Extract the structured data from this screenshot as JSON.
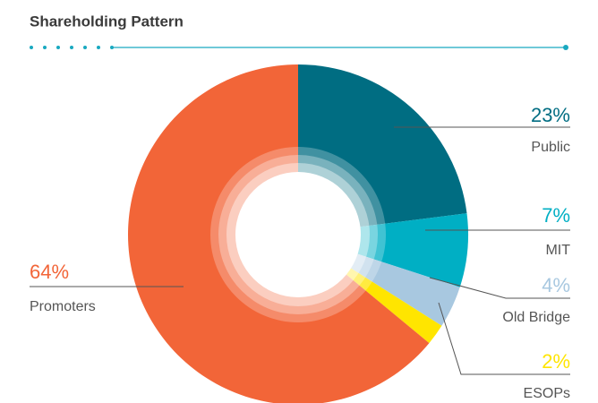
{
  "chart_data": {
    "type": "donut",
    "title": "Shareholding Pattern",
    "categories": [
      "Public",
      "MIT",
      "Old Bridge",
      "ESOPs",
      "Promoters"
    ],
    "values": [
      23,
      7,
      4,
      2,
      64
    ],
    "value_labels": [
      "23%",
      "7%",
      "4%",
      "2%",
      "64%"
    ],
    "colors": [
      "#006d82",
      "#00afc4",
      "#a8c8e0",
      "#ffe500",
      "#f26538"
    ]
  }
}
